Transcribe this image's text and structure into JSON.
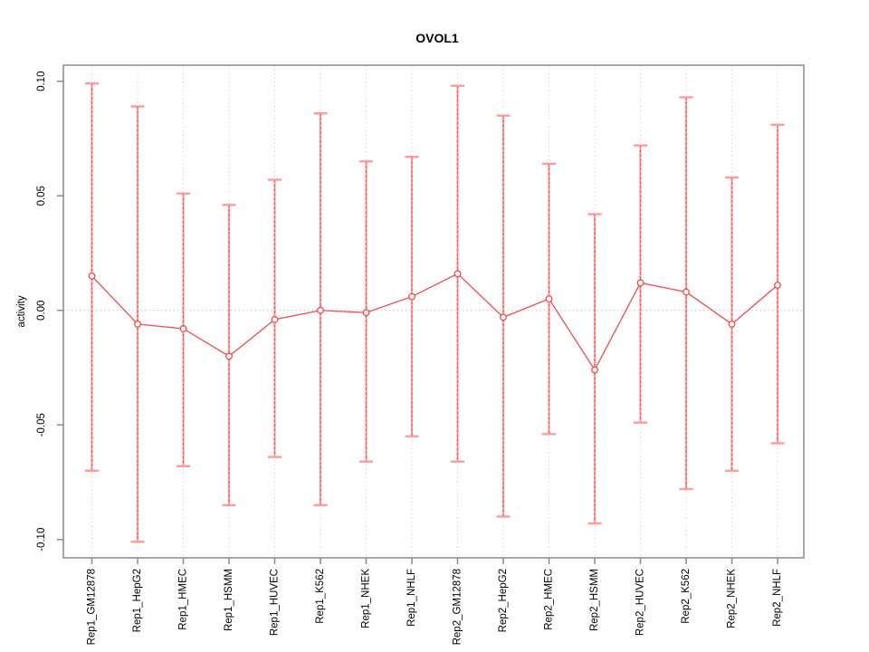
{
  "chart_data": {
    "type": "line",
    "title": "OVOL1",
    "xlabel": "",
    "ylabel": "activity",
    "legend": "none",
    "grid": "dotted vertical gridline at each category; dotted horizontal line at y=0",
    "ylim": [
      -0.108,
      0.107
    ],
    "ytick_values": [
      0.1,
      0.05,
      0.0,
      -0.05,
      -0.1
    ],
    "ytick_labels": [
      "0.10",
      "0.05",
      "0.00",
      "-0.05",
      "-0.10"
    ],
    "categories": [
      "Rep1_GM12878",
      "Rep1_HepG2",
      "Rep1_HMEC",
      "Rep1_HSMM",
      "Rep1_HUVEC",
      "Rep1_K562",
      "Rep1_NHEK",
      "Rep1_NHLF",
      "Rep2_GM12878",
      "Rep2_HepG2",
      "Rep2_HMEC",
      "Rep2_HSMM",
      "Rep2_HUVEC",
      "Rep2_K562",
      "Rep2_NHEK",
      "Rep2_NHLF"
    ],
    "series": [
      {
        "name": "activity",
        "values": [
          0.015,
          -0.006,
          -0.008,
          -0.02,
          -0.004,
          0.0,
          -0.001,
          0.006,
          0.016,
          -0.003,
          0.005,
          -0.026,
          0.012,
          0.008,
          -0.006,
          0.011
        ]
      }
    ],
    "error_bars": {
      "upper": [
        0.099,
        0.089,
        0.051,
        0.046,
        0.057,
        0.086,
        0.065,
        0.067,
        0.098,
        0.085,
        0.064,
        0.042,
        0.072,
        0.093,
        0.058,
        0.081
      ],
      "lower": [
        -0.07,
        -0.101,
        -0.068,
        -0.085,
        -0.064,
        -0.085,
        -0.066,
        -0.055,
        -0.066,
        -0.09,
        -0.054,
        -0.093,
        -0.049,
        -0.078,
        -0.07,
        -0.058
      ]
    },
    "colors": {
      "point_line_red": "#f14c4c",
      "error_bar_pink": "#ff9c9c",
      "gridline_grey": "#d9d9d9",
      "zero_line_grey": "#c4c4c4",
      "axis_grey": "#8f8f8f",
      "text_black": "#000000",
      "background": "#ffffff"
    }
  }
}
